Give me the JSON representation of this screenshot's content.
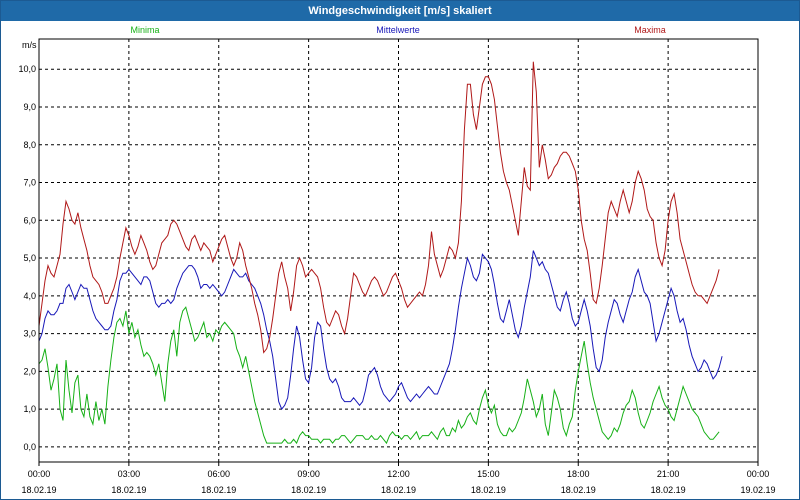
{
  "window": {
    "title": "Windgeschwindigkeit [m/s] skaliert"
  },
  "chart_data": {
    "type": "line",
    "title": "Windgeschwindigkeit [m/s] skaliert",
    "ylabel": "m/s",
    "xlabel": "",
    "ylim": [
      -0.4,
      10.8
    ],
    "xlim_hours": [
      0,
      24
    ],
    "grid": true,
    "y_ticks": [
      "0,0",
      "1,0",
      "2,0",
      "3,0",
      "4,0",
      "5,0",
      "6,0",
      "7,0",
      "8,0",
      "9,0",
      "10,0"
    ],
    "x_ticks": [
      {
        "time": "00:00",
        "date": "18.02.19"
      },
      {
        "time": "03:00",
        "date": "18.02.19"
      },
      {
        "time": "06:00",
        "date": "18.02.19"
      },
      {
        "time": "09:00",
        "date": "18.02.19"
      },
      {
        "time": "12:00",
        "date": "18.02.19"
      },
      {
        "time": "15:00",
        "date": "18.02.19"
      },
      {
        "time": "18:00",
        "date": "18.02.19"
      },
      {
        "time": "21:00",
        "date": "18.02.19"
      },
      {
        "time": "00:00",
        "date": "19.02.19"
      }
    ],
    "x_hours": [
      0,
      0.1,
      0.2,
      0.3,
      0.4,
      0.5,
      0.6,
      0.7,
      0.8,
      0.9,
      1,
      1.1,
      1.2,
      1.3,
      1.4,
      1.5,
      1.6,
      1.7,
      1.8,
      1.9,
      2,
      2.1,
      2.2,
      2.3,
      2.4,
      2.5,
      2.6,
      2.7,
      2.8,
      2.9,
      3,
      3.1,
      3.2,
      3.3,
      3.4,
      3.5,
      3.6,
      3.7,
      3.8,
      3.9,
      4,
      4.1,
      4.2,
      4.3,
      4.4,
      4.5,
      4.6,
      4.7,
      4.8,
      4.9,
      5,
      5.1,
      5.2,
      5.3,
      5.4,
      5.5,
      5.6,
      5.7,
      5.8,
      5.9,
      6,
      6.1,
      6.2,
      6.3,
      6.4,
      6.5,
      6.6,
      6.7,
      6.8,
      6.9,
      7,
      7.1,
      7.2,
      7.3,
      7.4,
      7.5,
      7.6,
      7.7,
      7.8,
      7.9,
      8,
      8.1,
      8.2,
      8.3,
      8.4,
      8.5,
      8.6,
      8.7,
      8.8,
      8.9,
      9,
      9.1,
      9.2,
      9.3,
      9.4,
      9.5,
      9.6,
      9.7,
      9.8,
      9.9,
      10,
      10.1,
      10.2,
      10.3,
      10.4,
      10.5,
      10.6,
      10.7,
      10.8,
      10.9,
      11,
      11.1,
      11.2,
      11.3,
      11.4,
      11.5,
      11.6,
      11.7,
      11.8,
      11.9,
      12,
      12.1,
      12.2,
      12.3,
      12.4,
      12.5,
      12.6,
      12.7,
      12.8,
      12.9,
      13,
      13.1,
      13.2,
      13.3,
      13.4,
      13.5,
      13.6,
      13.7,
      13.8,
      13.9,
      14,
      14.1,
      14.2,
      14.3,
      14.4,
      14.5,
      14.6,
      14.7,
      14.8,
      14.9,
      15,
      15.1,
      15.2,
      15.3,
      15.4,
      15.5,
      15.6,
      15.7,
      15.8,
      15.9,
      16,
      16.1,
      16.2,
      16.3,
      16.4,
      16.5,
      16.6,
      16.7,
      16.8,
      16.9,
      17,
      17.1,
      17.2,
      17.3,
      17.4,
      17.5,
      17.6,
      17.7,
      17.8,
      17.9,
      18,
      18.1,
      18.2,
      18.3,
      18.4,
      18.5,
      18.6,
      18.7,
      18.8,
      18.9,
      19,
      19.1,
      19.2,
      19.3,
      19.4,
      19.5,
      19.6,
      19.7,
      19.8,
      19.9,
      20,
      20.1,
      20.2,
      20.3,
      20.4,
      20.5,
      20.6,
      20.7,
      20.8,
      20.9,
      21,
      21.1,
      21.2,
      21.3,
      21.4,
      21.5,
      21.6,
      21.7,
      21.8,
      21.9,
      22,
      22.1,
      22.2,
      22.3,
      22.4,
      22.5,
      22.6,
      22.7,
      22.8,
      22.9,
      23,
      23.1,
      23.2,
      23.3,
      23.4,
      23.5,
      23.6,
      23.7,
      23.8,
      23.9
    ],
    "series": [
      {
        "name": "Minima",
        "color": "#16b016",
        "values": [
          2.2,
          2.3,
          2.6,
          2.1,
          1.5,
          1.8,
          2.2,
          1.0,
          0.7,
          2.3,
          1.5,
          0.9,
          1.7,
          1.9,
          1.0,
          0.8,
          1.4,
          0.8,
          0.6,
          1.2,
          0.7,
          1.0,
          0.6,
          1.6,
          2.3,
          2.9,
          3.3,
          3.4,
          3.2,
          3.6,
          3.0,
          3.3,
          2.9,
          3.1,
          2.7,
          2.4,
          2.5,
          2.4,
          2.2,
          1.9,
          2.2,
          1.7,
          1.2,
          2.2,
          2.8,
          3.1,
          2.4,
          3.3,
          3.6,
          3.7,
          3.4,
          3.1,
          2.8,
          2.9,
          3.1,
          3.3,
          2.9,
          3.0,
          2.8,
          3.1,
          3.0,
          3.2,
          3.3,
          3.2,
          3.1,
          3.0,
          2.6,
          2.4,
          2.1,
          2.4,
          2.0,
          1.6,
          1.2,
          0.9,
          0.6,
          0.3,
          0.1,
          0.1,
          0.1,
          0.1,
          0.1,
          0.1,
          0.2,
          0.1,
          0.1,
          0.2,
          0.1,
          0.3,
          0.4,
          0.3,
          0.3,
          0.2,
          0.2,
          0.2,
          0.1,
          0.2,
          0.2,
          0.2,
          0.1,
          0.2,
          0.2,
          0.3,
          0.3,
          0.2,
          0.1,
          0.2,
          0.3,
          0.3,
          0.3,
          0.2,
          0.2,
          0.3,
          0.2,
          0.2,
          0.3,
          0.2,
          0.1,
          0.3,
          0.4,
          0.3,
          0.3,
          0.2,
          0.3,
          0.3,
          0.2,
          0.3,
          0.4,
          0.2,
          0.3,
          0.3,
          0.3,
          0.4,
          0.3,
          0.2,
          0.4,
          0.5,
          0.3,
          0.3,
          0.5,
          0.4,
          0.7,
          0.5,
          0.6,
          0.8,
          0.9,
          0.7,
          0.6,
          1.0,
          1.3,
          1.5,
          1.1,
          0.9,
          1.1,
          0.6,
          0.4,
          0.3,
          0.3,
          0.5,
          0.4,
          0.5,
          0.7,
          0.9,
          1.3,
          1.8,
          1.5,
          1.2,
          0.8,
          1.0,
          1.4,
          0.6,
          0.3,
          0.9,
          1.5,
          1.3,
          1.0,
          0.5,
          0.3,
          0.6,
          0.8,
          1.5,
          2.0,
          2.4,
          2.8,
          2.2,
          1.7,
          1.3,
          1.0,
          0.7,
          0.4,
          0.3,
          0.2,
          0.3,
          0.5,
          0.4,
          0.6,
          0.9,
          1.1,
          1.2,
          1.5,
          1.3,
          0.9,
          0.6,
          0.5,
          0.7,
          0.9,
          1.2,
          1.4,
          1.6,
          1.3,
          1.1,
          1.0,
          0.8,
          0.7,
          1.0,
          1.3,
          1.6,
          1.4,
          1.2,
          1.0,
          0.9,
          0.8,
          0.6,
          0.4,
          0.3,
          0.2,
          0.2,
          0.3,
          0.4
        ]
      },
      {
        "name": "Mittelwerte",
        "color": "#1818b8",
        "values": [
          2.8,
          3.0,
          3.4,
          3.6,
          3.5,
          3.5,
          3.6,
          3.8,
          3.8,
          4.2,
          4.3,
          4.1,
          3.9,
          4.1,
          4.3,
          4.2,
          4.2,
          3.9,
          3.6,
          3.4,
          3.3,
          3.2,
          3.1,
          3.1,
          3.2,
          3.6,
          3.9,
          4.4,
          4.6,
          4.6,
          4.7,
          4.6,
          4.5,
          4.4,
          4.3,
          4.5,
          4.5,
          4.4,
          4.1,
          3.8,
          3.7,
          3.8,
          3.8,
          3.9,
          3.8,
          3.9,
          4.2,
          4.4,
          4.6,
          4.7,
          4.8,
          4.8,
          4.7,
          4.5,
          4.2,
          4.3,
          4.3,
          4.2,
          4.3,
          4.2,
          4.1,
          4.0,
          4.1,
          4.3,
          4.5,
          4.7,
          4.6,
          4.5,
          4.5,
          4.6,
          4.4,
          4.3,
          4.2,
          4.0,
          3.8,
          3.5,
          3.1,
          2.8,
          2.4,
          1.8,
          1.2,
          1.0,
          1.1,
          1.3,
          1.9,
          2.6,
          3.2,
          2.9,
          2.3,
          1.8,
          1.7,
          2.1,
          2.9,
          3.3,
          3.2,
          2.6,
          2.1,
          1.8,
          1.7,
          1.8,
          1.6,
          1.3,
          1.2,
          1.2,
          1.2,
          1.3,
          1.2,
          1.1,
          1.2,
          1.5,
          1.9,
          2.0,
          2.1,
          1.9,
          1.6,
          1.4,
          1.3,
          1.2,
          1.3,
          1.4,
          1.6,
          1.7,
          1.5,
          1.3,
          1.2,
          1.3,
          1.4,
          1.3,
          1.4,
          1.5,
          1.6,
          1.5,
          1.4,
          1.4,
          1.6,
          1.8,
          2.0,
          2.2,
          2.6,
          3.1,
          3.7,
          4.2,
          4.6,
          5.0,
          4.8,
          4.5,
          4.4,
          4.6,
          5.1,
          5.0,
          4.9,
          4.7,
          4.3,
          3.8,
          3.4,
          3.3,
          3.6,
          3.9,
          3.5,
          3.1,
          2.9,
          3.2,
          3.7,
          4.1,
          4.5,
          5.2,
          5.0,
          4.8,
          4.9,
          4.7,
          4.6,
          4.3,
          4.0,
          3.7,
          3.6,
          3.9,
          4.1,
          3.8,
          3.4,
          3.2,
          3.3,
          3.6,
          3.9,
          3.6,
          3.2,
          2.6,
          2.1,
          2.0,
          2.3,
          2.9,
          3.3,
          3.6,
          3.9,
          3.8,
          3.5,
          3.3,
          3.6,
          3.9,
          4.1,
          4.5,
          4.7,
          4.4,
          4.1,
          4.0,
          3.8,
          3.3,
          2.8,
          3.0,
          3.3,
          3.6,
          3.9,
          4.2,
          4.0,
          3.6,
          3.3,
          3.4,
          3.1,
          2.7,
          2.4,
          2.2,
          2.0,
          2.1,
          2.3,
          2.2,
          2.0,
          1.8,
          1.9,
          2.1,
          2.4
        ]
      },
      {
        "name": "Maxima",
        "color": "#b01818",
        "values": [
          3.2,
          3.8,
          4.4,
          4.8,
          4.6,
          4.5,
          4.8,
          5.1,
          5.9,
          6.5,
          6.3,
          6.0,
          5.9,
          6.2,
          5.8,
          5.5,
          5.2,
          4.8,
          4.5,
          4.4,
          4.3,
          4.1,
          3.8,
          3.8,
          4.0,
          4.2,
          4.5,
          5.0,
          5.4,
          5.8,
          5.6,
          5.3,
          5.1,
          5.3,
          5.6,
          5.4,
          5.2,
          4.9,
          4.7,
          4.8,
          5.1,
          5.4,
          5.5,
          5.6,
          5.9,
          6.0,
          5.9,
          5.7,
          5.5,
          5.3,
          5.2,
          5.5,
          5.6,
          5.4,
          5.2,
          5.4,
          5.3,
          5.2,
          4.9,
          5.1,
          5.3,
          5.5,
          5.6,
          5.3,
          5.0,
          4.8,
          5.0,
          5.4,
          5.2,
          4.8,
          4.5,
          4.2,
          3.8,
          3.5,
          3.1,
          2.5,
          2.6,
          2.9,
          3.4,
          4.0,
          4.6,
          4.9,
          4.5,
          4.2,
          3.6,
          4.1,
          4.8,
          5.0,
          4.8,
          4.5,
          4.6,
          4.7,
          4.6,
          4.5,
          4.2,
          3.7,
          3.3,
          3.2,
          3.4,
          3.6,
          3.5,
          3.2,
          3.0,
          3.4,
          4.0,
          4.6,
          4.5,
          4.3,
          4.1,
          4.0,
          4.2,
          4.4,
          4.5,
          4.4,
          4.2,
          4.0,
          4.1,
          4.3,
          4.5,
          4.6,
          4.4,
          4.2,
          3.9,
          3.7,
          3.8,
          3.9,
          4.0,
          4.1,
          4.0,
          4.3,
          4.8,
          5.7,
          5.1,
          4.8,
          4.5,
          4.7,
          5.0,
          5.3,
          5.2,
          5.0,
          5.4,
          6.5,
          8.4,
          9.6,
          9.6,
          8.8,
          8.4,
          9.0,
          9.6,
          9.8,
          9.8,
          9.6,
          9.2,
          8.5,
          7.8,
          7.3,
          7.0,
          6.8,
          6.4,
          6.0,
          5.6,
          6.5,
          7.4,
          6.9,
          6.8,
          10.2,
          9.4,
          7.4,
          8.0,
          7.6,
          7.1,
          7.2,
          7.4,
          7.5,
          7.7,
          7.8,
          7.8,
          7.7,
          7.5,
          7.3,
          6.8,
          6.0,
          5.5,
          5.2,
          4.6,
          3.9,
          3.8,
          4.2,
          4.8,
          5.5,
          6.2,
          6.5,
          6.3,
          6.1,
          6.5,
          6.8,
          6.5,
          6.2,
          6.5,
          7.0,
          7.3,
          7.1,
          6.8,
          6.3,
          6.1,
          6.0,
          5.4,
          5.0,
          4.8,
          5.2,
          6.0,
          6.5,
          6.7,
          6.2,
          5.5,
          5.2,
          4.9,
          4.6,
          4.3,
          4.1,
          4.0,
          4.0,
          3.9,
          3.8,
          4.0,
          4.2,
          4.4,
          4.7
        ]
      }
    ]
  }
}
